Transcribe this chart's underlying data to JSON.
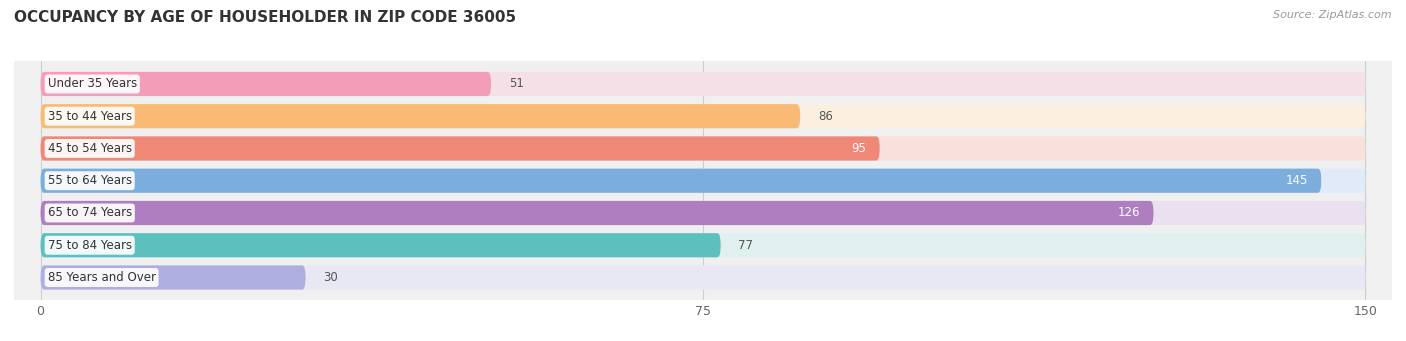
{
  "title": "OCCUPANCY BY AGE OF HOUSEHOLDER IN ZIP CODE 36005",
  "source": "Source: ZipAtlas.com",
  "categories": [
    "Under 35 Years",
    "35 to 44 Years",
    "45 to 54 Years",
    "55 to 64 Years",
    "65 to 74 Years",
    "75 to 84 Years",
    "85 Years and Over"
  ],
  "values": [
    51,
    86,
    95,
    145,
    126,
    77,
    30
  ],
  "bar_colors": [
    "#F49DB8",
    "#F9BA76",
    "#F08878",
    "#7BAEDD",
    "#AF7EC0",
    "#5EC0BE",
    "#AEAEE0"
  ],
  "bar_bg_colors": [
    "#F5E0E8",
    "#FBF0E0",
    "#F8E0DC",
    "#E0EAF8",
    "#EAE0F0",
    "#DFF0EE",
    "#E8E8F5"
  ],
  "value_inside": [
    false,
    false,
    true,
    true,
    true,
    false,
    false
  ],
  "xlim": [
    0,
    150
  ],
  "xticks": [
    0,
    75,
    150
  ],
  "title_fontsize": 11,
  "label_fontsize": 8.5,
  "value_fontsize": 8.5,
  "background_color": "#ffffff",
  "plot_bg_color": "#f0f0f0"
}
